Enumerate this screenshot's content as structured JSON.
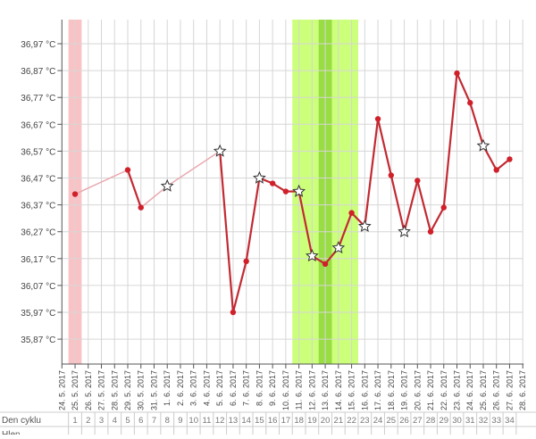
{
  "chart_data": {
    "type": "line",
    "title": "",
    "xlabel": "",
    "ylabel": "",
    "y_unit": "°C",
    "ylim": [
      35.82,
      37.05
    ],
    "grid": true,
    "y_ticks": [
      "36,97 °C",
      "36,87 °C",
      "36,77 °C",
      "36,67 °C",
      "36,57 °C",
      "36,47 °C",
      "36,37 °C",
      "36,27 °C",
      "36,17 °C",
      "36,07 °C",
      "35,97 °C",
      "35,87 °C"
    ],
    "y_tick_values": [
      36.97,
      36.87,
      36.77,
      36.67,
      36.57,
      36.47,
      36.37,
      36.27,
      36.17,
      36.07,
      35.97,
      35.87
    ],
    "x_tick_labels": [
      "24. 5. 2017",
      "25. 5. 2017",
      "26. 5. 2017",
      "27. 5. 2017",
      "28. 5. 2017",
      "29. 5. 2017",
      "30. 5. 2017",
      "31. 5. 2017",
      "1. 6. 2017",
      "2. 6. 2017",
      "3. 6. 2017",
      "4. 6. 2017",
      "5. 6. 2017",
      "6. 6. 2017",
      "7. 6. 2017",
      "8. 6. 2017",
      "9. 6. 2017",
      "10. 6. 2017",
      "11. 6. 2017",
      "12. 6. 2017",
      "13. 6. 2017",
      "14. 6. 2017",
      "15. 6. 2017",
      "16. 6. 2017",
      "17. 6. 2017",
      "18. 6. 2017",
      "19. 6. 2017",
      "20. 6. 2017",
      "21. 6. 2017",
      "22. 6. 2017",
      "23. 6. 2017",
      "24. 6. 2017",
      "25. 6. 2017",
      "26. 6. 2017",
      "27. 6. 2017",
      "28. 6. 2017"
    ],
    "series": [
      {
        "color": "#c22a33",
        "gap_color": "#e9a9b0",
        "points": [
          {
            "date": "25. 5. 2017",
            "value": 36.41,
            "marker": "dot"
          },
          {
            "date": "29. 5. 2017",
            "value": 36.5,
            "marker": "dot"
          },
          {
            "date": "30. 5. 2017",
            "value": 36.36,
            "marker": "dot"
          },
          {
            "date": "1. 6. 2017",
            "value": 36.44,
            "marker": "star"
          },
          {
            "date": "5. 6. 2017",
            "value": 36.57,
            "marker": "star"
          },
          {
            "date": "6. 6. 2017",
            "value": 35.97,
            "marker": "dot"
          },
          {
            "date": "7. 6. 2017",
            "value": 36.16,
            "marker": "dot"
          },
          {
            "date": "8. 6. 2017",
            "value": 36.47,
            "marker": "star"
          },
          {
            "date": "9. 6. 2017",
            "value": 36.45,
            "marker": "dot"
          },
          {
            "date": "10. 6. 2017",
            "value": 36.42,
            "marker": "dot"
          },
          {
            "date": "11. 6. 2017",
            "value": 36.42,
            "marker": "star"
          },
          {
            "date": "12. 6. 2017",
            "value": 36.18,
            "marker": "star"
          },
          {
            "date": "13. 6. 2017",
            "value": 36.15,
            "marker": "dot"
          },
          {
            "date": "14. 6. 2017",
            "value": 36.21,
            "marker": "star"
          },
          {
            "date": "15. 6. 2017",
            "value": 36.34,
            "marker": "dot"
          },
          {
            "date": "16. 6. 2017",
            "value": 36.29,
            "marker": "star"
          },
          {
            "date": "17. 6. 2017",
            "value": 36.69,
            "marker": "dot"
          },
          {
            "date": "18. 6. 2017",
            "value": 36.48,
            "marker": "dot"
          },
          {
            "date": "19. 6. 2017",
            "value": 36.27,
            "marker": "star"
          },
          {
            "date": "20. 6. 2017",
            "value": 36.46,
            "marker": "dot"
          },
          {
            "date": "21. 6. 2017",
            "value": 36.27,
            "marker": "dot"
          },
          {
            "date": "22. 6. 2017",
            "value": 36.36,
            "marker": "dot"
          },
          {
            "date": "23. 6. 2017",
            "value": 36.86,
            "marker": "dot"
          },
          {
            "date": "24. 6. 2017",
            "value": 36.75,
            "marker": "dot"
          },
          {
            "date": "25. 6. 2017",
            "value": 36.59,
            "marker": "star"
          },
          {
            "date": "26. 6. 2017",
            "value": 36.5,
            "marker": "dot"
          },
          {
            "date": "27. 6. 2017",
            "value": 36.54,
            "marker": "dot"
          }
        ]
      }
    ],
    "bands": [
      {
        "from": "25. 5. 2017",
        "to": "25. 5. 2017",
        "color": "#f9c3c6"
      },
      {
        "from": "11. 6. 2017",
        "to": "15. 6. 2017",
        "color": "#ccff7a"
      },
      {
        "from": "13. 6. 2017",
        "to": "13. 6. 2017",
        "color": "#99dd44"
      }
    ]
  },
  "table": {
    "rows": [
      {
        "label": "Den cyklu",
        "cells": [
          "1",
          "2",
          "3",
          "4",
          "5",
          "6",
          "7",
          "8",
          "9",
          "10",
          "11",
          "12",
          "13",
          "14",
          "15",
          "16",
          "17",
          "18",
          "19",
          "20",
          "21",
          "22",
          "23",
          "24",
          "25",
          "26",
          "27",
          "28",
          "29",
          "30",
          "31",
          "32",
          "33",
          "34"
        ]
      },
      {
        "label": "Hlen",
        "cells": []
      }
    ]
  }
}
